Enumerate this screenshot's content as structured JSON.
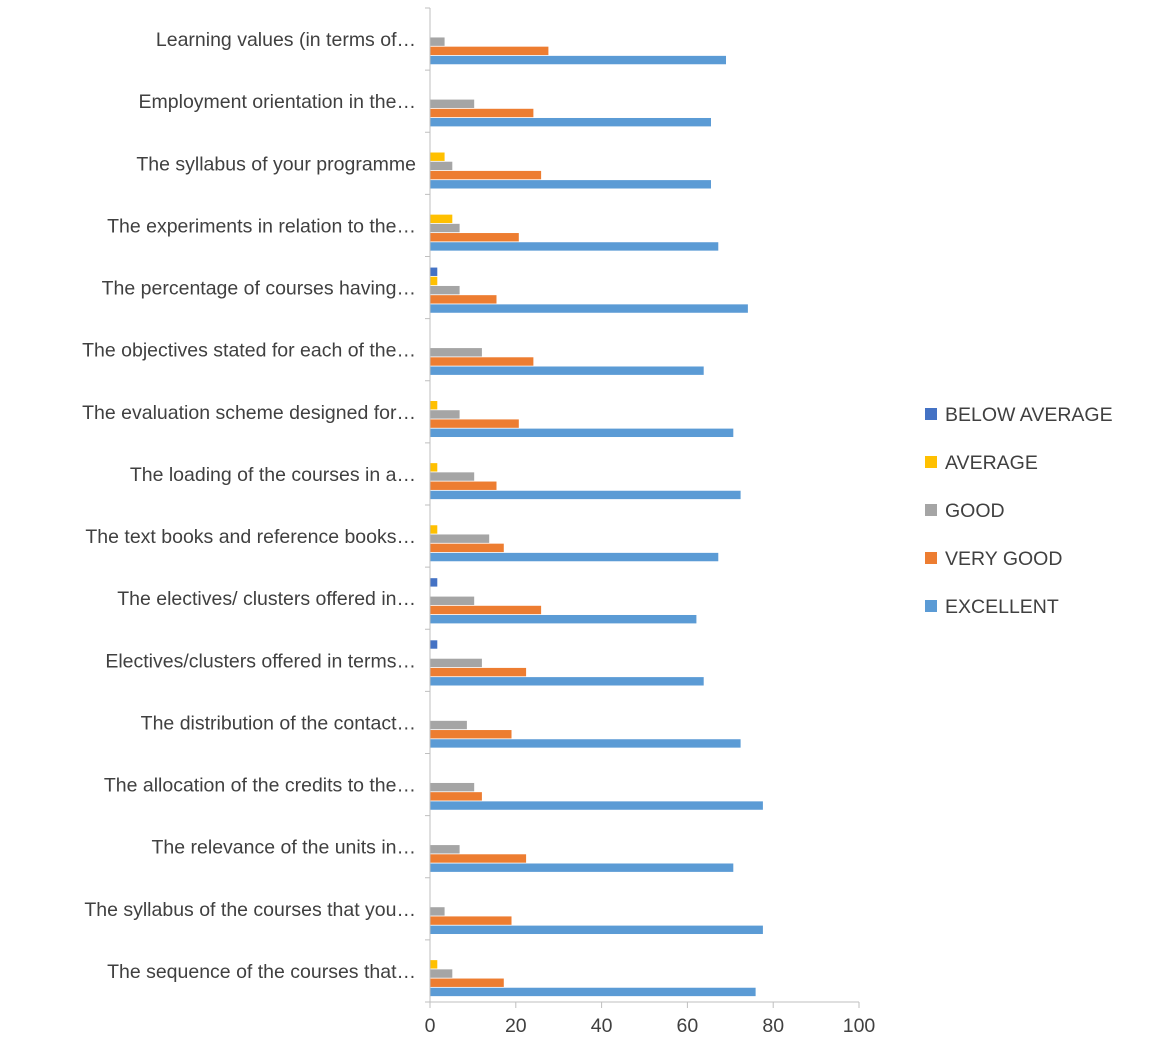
{
  "chart_data": {
    "type": "bar",
    "orientation": "horizontal",
    "title": "",
    "xlabel": "",
    "ylabel": "",
    "xlim": [
      0,
      100
    ],
    "x_ticks": [
      0,
      20,
      40,
      60,
      80,
      100
    ],
    "grid": false,
    "legend_position": "right",
    "categories": [
      "Learning values (in terms of…",
      "Employment orientation in the…",
      "The syllabus of your programme",
      "The experiments in relation to the…",
      "The percentage of courses having…",
      "The objectives stated for each of the…",
      "The evaluation scheme designed for…",
      "The loading of the courses in a…",
      "The text books and reference books…",
      "The electives/ clusters offered in…",
      "Electives/clusters offered in terms…",
      "The distribution of the contact…",
      "The allocation of the credits to the…",
      "The relevance of the units in…",
      "The syllabus of the courses that you…",
      "The sequence of the courses that…"
    ],
    "series": [
      {
        "name": "BELOW AVERAGE",
        "color": "#4472C4",
        "values": [
          0,
          0,
          0,
          0,
          1.7,
          0,
          0,
          0,
          0,
          1.7,
          1.7,
          0,
          0,
          0,
          0,
          0
        ]
      },
      {
        "name": "AVERAGE",
        "color": "#FFC000",
        "values": [
          0,
          0,
          3.4,
          5.2,
          1.7,
          0,
          1.7,
          1.7,
          1.7,
          0,
          0,
          0,
          0,
          0,
          0,
          1.7
        ]
      },
      {
        "name": "GOOD",
        "color": "#A5A5A5",
        "values": [
          3.4,
          10.3,
          5.2,
          6.9,
          6.9,
          12.1,
          6.9,
          10.3,
          13.8,
          10.3,
          12.1,
          8.6,
          10.3,
          6.9,
          3.4,
          5.2
        ]
      },
      {
        "name": "VERY GOOD",
        "color": "#ED7D31",
        "values": [
          27.6,
          24.1,
          25.9,
          20.7,
          15.5,
          24.1,
          20.7,
          15.5,
          17.2,
          25.9,
          22.4,
          19.0,
          12.1,
          22.4,
          19.0,
          17.2
        ]
      },
      {
        "name": "EXCELLENT",
        "color": "#5B9BD5",
        "values": [
          69.0,
          65.5,
          65.5,
          67.2,
          74.1,
          63.8,
          70.7,
          72.4,
          67.2,
          62.1,
          63.8,
          72.4,
          77.6,
          70.7,
          77.6,
          75.9
        ]
      }
    ]
  }
}
